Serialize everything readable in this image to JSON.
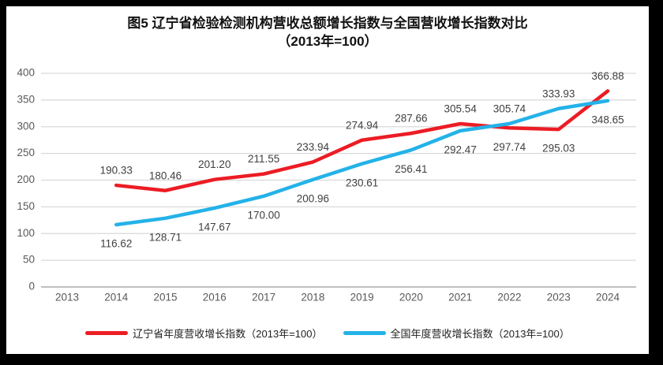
{
  "title": {
    "line1": "图5  辽宁省检验检测机构营收总额增长指数与全国营收增长指数对比",
    "line2": "（2013年=100）"
  },
  "legend": [
    {
      "label": "辽宁省年度营收增长指数（2013年=100）",
      "color": "#ec1c24"
    },
    {
      "label": "全国年度营收增长指数（2013年=100）",
      "color": "#24b2e8"
    }
  ],
  "chart_data": {
    "type": "line",
    "categories": [
      "2013",
      "2014",
      "2015",
      "2016",
      "2017",
      "2018",
      "2019",
      "2020",
      "2021",
      "2022",
      "2023",
      "2024"
    ],
    "series": [
      {
        "name": "辽宁省年度营收增长指数（2013年=100）",
        "color": "#ec1c24",
        "values": [
          null,
          190.33,
          180.46,
          201.2,
          211.55,
          233.94,
          274.94,
          287.66,
          305.54,
          297.74,
          295.03,
          366.88
        ],
        "label_positions": [
          null,
          "above",
          "above",
          "above",
          "above",
          "above",
          "above",
          "above",
          "above",
          "below",
          "below",
          "above"
        ]
      },
      {
        "name": "全国年度营收增长指数（2013年=100）",
        "color": "#24b2e8",
        "values": [
          null,
          116.62,
          128.71,
          147.67,
          170.0,
          200.96,
          230.61,
          256.41,
          292.47,
          305.74,
          333.93,
          348.65
        ],
        "label_positions": [
          null,
          "below",
          "below",
          "below",
          "below",
          "below",
          "below",
          "below",
          "below",
          "above",
          "above",
          "below"
        ]
      }
    ],
    "ylim": [
      0,
      400
    ],
    "ytick_step": 50,
    "grid": true,
    "legend_position": "bottom",
    "xlabel": "",
    "ylabel": ""
  },
  "colors": {
    "grid": "#d9d9d9",
    "axis": "#bfbfbf",
    "tick_text": "#595959",
    "data_label": "#404040",
    "frame": "#000000",
    "background": "#ffffff"
  }
}
